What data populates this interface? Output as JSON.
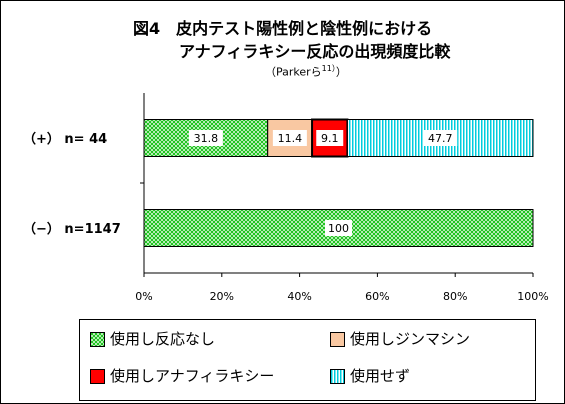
{
  "title": {
    "line1": "図4　皮内テスト陽性例と陰性例における",
    "line2": "アナフィラキシー反応の出現頻度比較"
  },
  "source": {
    "text": "（Parkerら",
    "sup": "11）",
    "close": "）"
  },
  "chart_data": {
    "type": "bar",
    "orientation": "horizontal",
    "stacked": "percent",
    "categories": [
      "（+） n=  44",
      "（−） n=1147"
    ],
    "series": [
      {
        "name": "使用し反応なし",
        "values": [
          31.8,
          100
        ],
        "labels": [
          "31.8",
          "100"
        ],
        "color": "#22c422",
        "pattern": "checker-green"
      },
      {
        "name": "使用しジンマシン",
        "values": [
          11.4,
          0
        ],
        "labels": [
          "11.4",
          ""
        ],
        "color": "#f9c8a2",
        "pattern": "solid"
      },
      {
        "name": "使用しアナフィラキシー",
        "values": [
          9.1,
          0
        ],
        "labels": [
          "9.1",
          ""
        ],
        "color": "#ff0000",
        "pattern": "solid"
      },
      {
        "name": "使用せず",
        "values": [
          47.7,
          0
        ],
        "labels": [
          "47.7",
          ""
        ],
        "color": "#00ccdd",
        "pattern": "vertical-stripes-cyan"
      }
    ],
    "xlim": [
      0,
      100
    ],
    "ticks": [
      "0%",
      "20%",
      "40%",
      "60%",
      "80%",
      "100%"
    ],
    "xlabel": "",
    "ylabel": "",
    "grid": false,
    "legend": "bottom"
  }
}
